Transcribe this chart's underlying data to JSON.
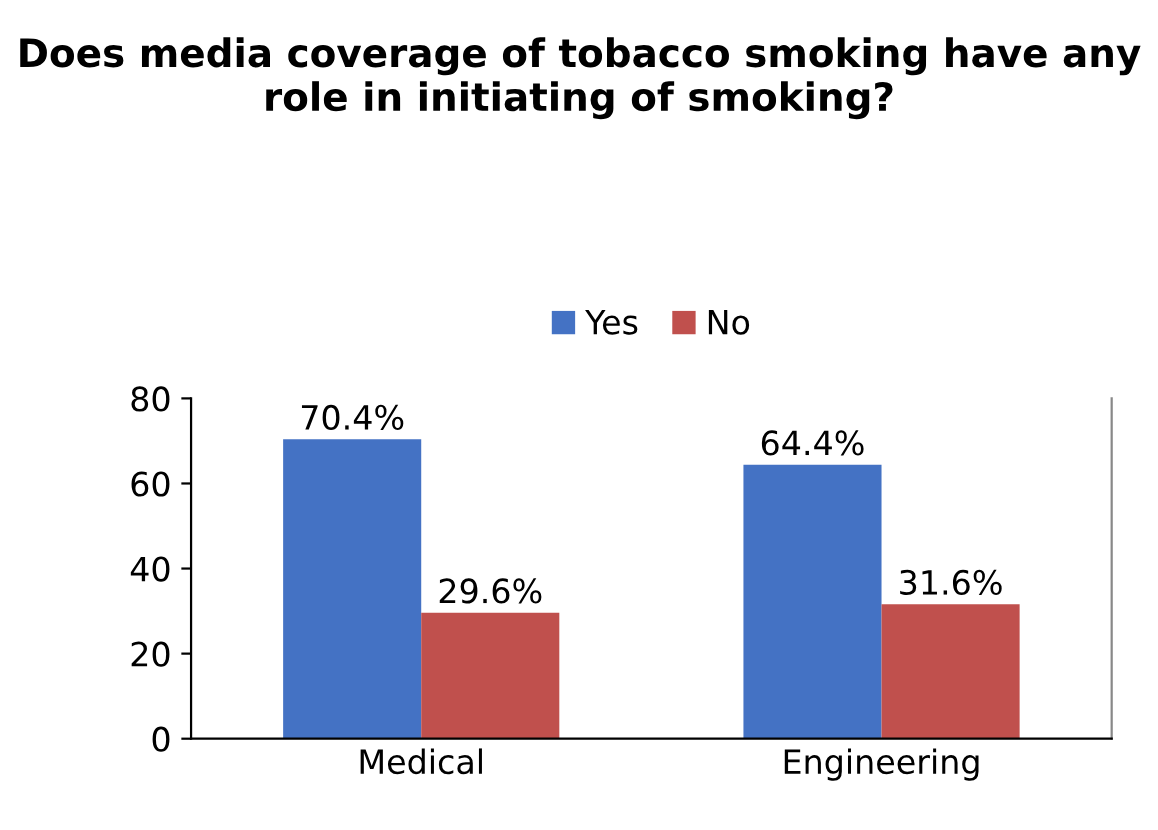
{
  "chart_data": {
    "type": "bar",
    "title": "Does media coverage of tobacco smoking have any role in initiating of smoking?",
    "categories": [
      "Medical",
      "Engineering"
    ],
    "series": [
      {
        "name": "Yes",
        "color": "#4472c4",
        "values": [
          70.4,
          64.4
        ],
        "value_labels": [
          "70.4%",
          "64.4%"
        ]
      },
      {
        "name": "No",
        "color": "#c0504d",
        "values": [
          29.6,
          31.6
        ],
        "value_labels": [
          "29.6%",
          "31.6%"
        ]
      }
    ],
    "ylim": [
      0,
      80
    ],
    "yticks": [
      0,
      20,
      40,
      60,
      80
    ],
    "grid": false,
    "legend": "top"
  }
}
